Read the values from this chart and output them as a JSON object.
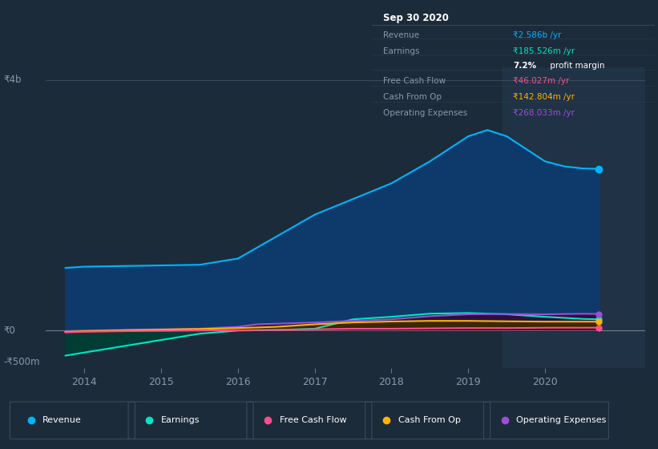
{
  "bg_color": "#1c2b3a",
  "plot_bg_color": "#1c2b3a",
  "ylim": [
    -600000000,
    4200000000
  ],
  "xlim": [
    2013.5,
    2021.3
  ],
  "x_ticks": [
    2014,
    2015,
    2016,
    2017,
    2018,
    2019,
    2020
  ],
  "y_label_top": "₹4b",
  "y_label_zero": "₹0",
  "y_label_bottom": "-₹500m",
  "series": {
    "Revenue": {
      "color": "#00b4ff",
      "fill_color": "#0d3a6b",
      "x": [
        2013.75,
        2014.0,
        2014.5,
        2015.0,
        2015.5,
        2016.0,
        2016.5,
        2017.0,
        2017.5,
        2018.0,
        2018.5,
        2019.0,
        2019.25,
        2019.5,
        2019.75,
        2020.0,
        2020.25,
        2020.5,
        2020.7
      ],
      "y": [
        1000000000,
        1020000000,
        1030000000,
        1040000000,
        1050000000,
        1150000000,
        1500000000,
        1850000000,
        2100000000,
        2350000000,
        2700000000,
        3100000000,
        3200000000,
        3100000000,
        2900000000,
        2700000000,
        2620000000,
        2586000000,
        2580000000
      ]
    },
    "Earnings": {
      "color": "#00e6c5",
      "fill_color": "#003d35",
      "x": [
        2013.75,
        2014.0,
        2014.5,
        2015.0,
        2015.5,
        2016.0,
        2016.5,
        2017.0,
        2017.5,
        2018.0,
        2018.5,
        2019.0,
        2019.5,
        2020.0,
        2020.5,
        2020.7
      ],
      "y": [
        -400000000,
        -350000000,
        -250000000,
        -150000000,
        -50000000,
        0,
        10000000,
        30000000,
        180000000,
        220000000,
        270000000,
        280000000,
        260000000,
        220000000,
        185526000,
        180000000
      ]
    },
    "FreeCashFlow": {
      "color": "#ff4d8d",
      "fill_color": "#3a0020",
      "x": [
        2013.75,
        2014.0,
        2014.5,
        2015.0,
        2015.5,
        2016.0,
        2016.5,
        2017.0,
        2017.5,
        2018.0,
        2018.5,
        2019.0,
        2019.5,
        2020.0,
        2020.5,
        2020.7
      ],
      "y": [
        -30000000,
        -20000000,
        -10000000,
        -5000000,
        0,
        5000000,
        10000000,
        20000000,
        30000000,
        30000000,
        35000000,
        40000000,
        40000000,
        45000000,
        46027000,
        46000000
      ]
    },
    "CashFromOp": {
      "color": "#ffb300",
      "fill_color": "#3a2800",
      "x": [
        2013.75,
        2014.0,
        2014.5,
        2015.0,
        2015.5,
        2016.0,
        2016.5,
        2017.0,
        2017.5,
        2018.0,
        2018.5,
        2019.0,
        2019.5,
        2020.0,
        2020.5,
        2020.7
      ],
      "y": [
        -20000000,
        -10000000,
        5000000,
        15000000,
        25000000,
        40000000,
        60000000,
        100000000,
        130000000,
        145000000,
        155000000,
        155000000,
        148000000,
        143000000,
        142804000,
        142000000
      ]
    },
    "OperatingExpenses": {
      "color": "#9b4fd4",
      "fill_color": "#2a1040",
      "x": [
        2013.75,
        2014.0,
        2014.5,
        2015.0,
        2015.5,
        2016.0,
        2016.25,
        2016.5,
        2017.0,
        2017.5,
        2018.0,
        2018.5,
        2019.0,
        2019.5,
        2020.0,
        2020.5,
        2020.7
      ],
      "y": [
        -10000000,
        0,
        10000000,
        20000000,
        30000000,
        60000000,
        100000000,
        110000000,
        130000000,
        155000000,
        180000000,
        230000000,
        260000000,
        265000000,
        260000000,
        268033000,
        265000000
      ]
    }
  },
  "shaded_region": [
    2019.45,
    2021.3
  ],
  "shaded_color": "#253a50",
  "info_box": {
    "title": "Sep 30 2020",
    "title_color": "#ffffff",
    "bg_color": "#0d1117",
    "border_color": "#3a4a5a",
    "rows": [
      {
        "label": "Revenue",
        "label_color": "#8899aa",
        "value": "₹2.586b /yr",
        "value_color": "#00b4ff"
      },
      {
        "label": "Earnings",
        "label_color": "#8899aa",
        "value": "₹185.526m /yr",
        "value_color": "#00e6c5"
      },
      {
        "label": "",
        "label_color": "#8899aa",
        "value": "7.2% profit margin",
        "value_color": "#ffffff"
      },
      {
        "label": "Free Cash Flow",
        "label_color": "#8899aa",
        "value": "₹46.027m /yr",
        "value_color": "#ff4d8d"
      },
      {
        "label": "Cash From Op",
        "label_color": "#8899aa",
        "value": "₹142.804m /yr",
        "value_color": "#ffb300"
      },
      {
        "label": "Operating Expenses",
        "label_color": "#8899aa",
        "value": "₹268.033m /yr",
        "value_color": "#9b4fd4"
      }
    ]
  },
  "legend": [
    {
      "label": "Revenue",
      "color": "#00b4ff"
    },
    {
      "label": "Earnings",
      "color": "#00e6c5"
    },
    {
      "label": "Free Cash Flow",
      "color": "#ff4d8d"
    },
    {
      "label": "Cash From Op",
      "color": "#ffb300"
    },
    {
      "label": "Operating Expenses",
      "color": "#9b4fd4"
    }
  ],
  "text_color": "#8899aa",
  "zero_line_color": "#cccccc",
  "top_line_color": "#445566"
}
